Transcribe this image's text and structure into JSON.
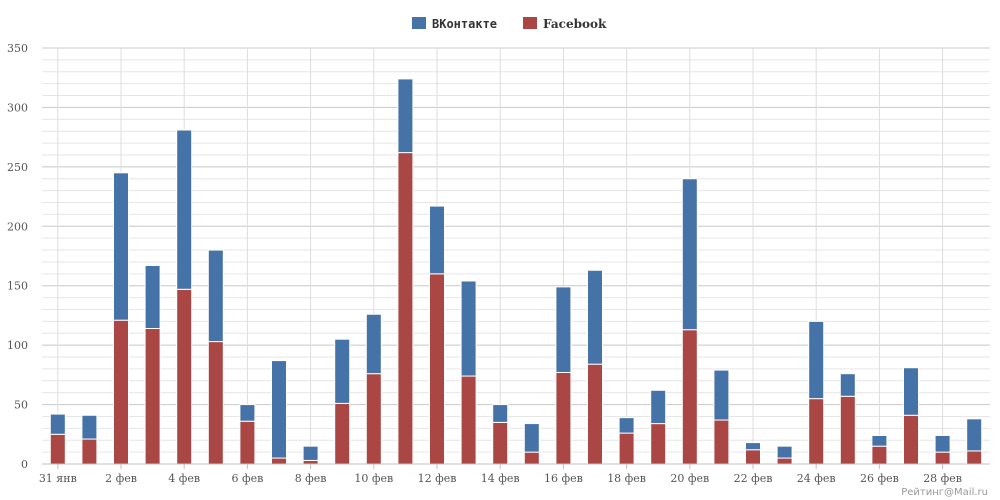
{
  "chart_data": {
    "type": "bar",
    "stacked": true,
    "legend_position": "top-center",
    "grid": true,
    "ylim": [
      0,
      350
    ],
    "yticks": [
      0,
      50,
      100,
      150,
      200,
      250,
      300,
      350
    ],
    "categories": [
      "31 янв",
      "1 фев",
      "2 фев",
      "3 фев",
      "4 фев",
      "5 фев",
      "6 фев",
      "7 фев",
      "8 фев",
      "9 фев",
      "10 фев",
      "11 фев",
      "12 фев",
      "13 фев",
      "14 фев",
      "15 фев",
      "16 фев",
      "17 фев",
      "18 фев",
      "19 фев",
      "20 фев",
      "21 фев",
      "22 фев",
      "23 фев",
      "24 фев",
      "25 фев",
      "26 фев",
      "27 фев",
      "28 фев",
      "29 фев"
    ],
    "xtick_labels": [
      "31 янв",
      "",
      "2 фев",
      "",
      "4 фев",
      "",
      "6 фев",
      "",
      "8 фев",
      "",
      "10 фев",
      "",
      "12 фев",
      "",
      "14 фев",
      "",
      "16 фев",
      "",
      "18 фев",
      "",
      "20 фев",
      "",
      "22 фев",
      "",
      "24 фев",
      "",
      "26 фев",
      "",
      "28 фев",
      ""
    ],
    "series": [
      {
        "name": "Facebook",
        "color": "#aa4643",
        "values": [
          25,
          21,
          121,
          114,
          147,
          103,
          36,
          5,
          3,
          51,
          76,
          262,
          160,
          74,
          35,
          10,
          77,
          84,
          26,
          34,
          113,
          37,
          12,
          5,
          55,
          57,
          15,
          41,
          10,
          11
        ]
      },
      {
        "name": "ВКонтакте",
        "color": "#4572a7",
        "values": [
          17,
          20,
          124,
          53,
          134,
          77,
          14,
          82,
          12,
          54,
          50,
          62,
          57,
          80,
          15,
          24,
          72,
          79,
          13,
          28,
          127,
          42,
          6,
          10,
          65,
          19,
          9,
          40,
          14,
          27
        ]
      }
    ],
    "credit": "Рейтинг@Mail.ru"
  }
}
